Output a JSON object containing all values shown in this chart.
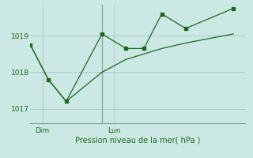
{
  "background_color": "#cce8e4",
  "grid_color": "#aacccc",
  "line_color": "#1a6b1a",
  "title": "Pression niveau de la mer( hPa )",
  "ylim": [
    1016.6,
    1019.85
  ],
  "yticks": [
    1017,
    1018,
    1019
  ],
  "xlim": [
    0,
    9
  ],
  "dim_x": 0.5,
  "lun_x": 3.5,
  "vline_x": 3.0,
  "series1_x": [
    0,
    0.75,
    1.5,
    3.0,
    4.0,
    4.75,
    5.5,
    6.5,
    8.5
  ],
  "series1_y": [
    1018.75,
    1017.8,
    1017.2,
    1019.05,
    1018.65,
    1018.65,
    1019.6,
    1019.2,
    1019.75
  ],
  "series2_x": [
    0,
    0.75,
    1.5,
    3.0,
    4.0,
    4.75,
    5.5,
    6.5,
    8.5
  ],
  "series2_y": [
    1018.75,
    1017.8,
    1017.2,
    1018.0,
    1018.35,
    1018.5,
    1018.65,
    1018.8,
    1019.05
  ]
}
